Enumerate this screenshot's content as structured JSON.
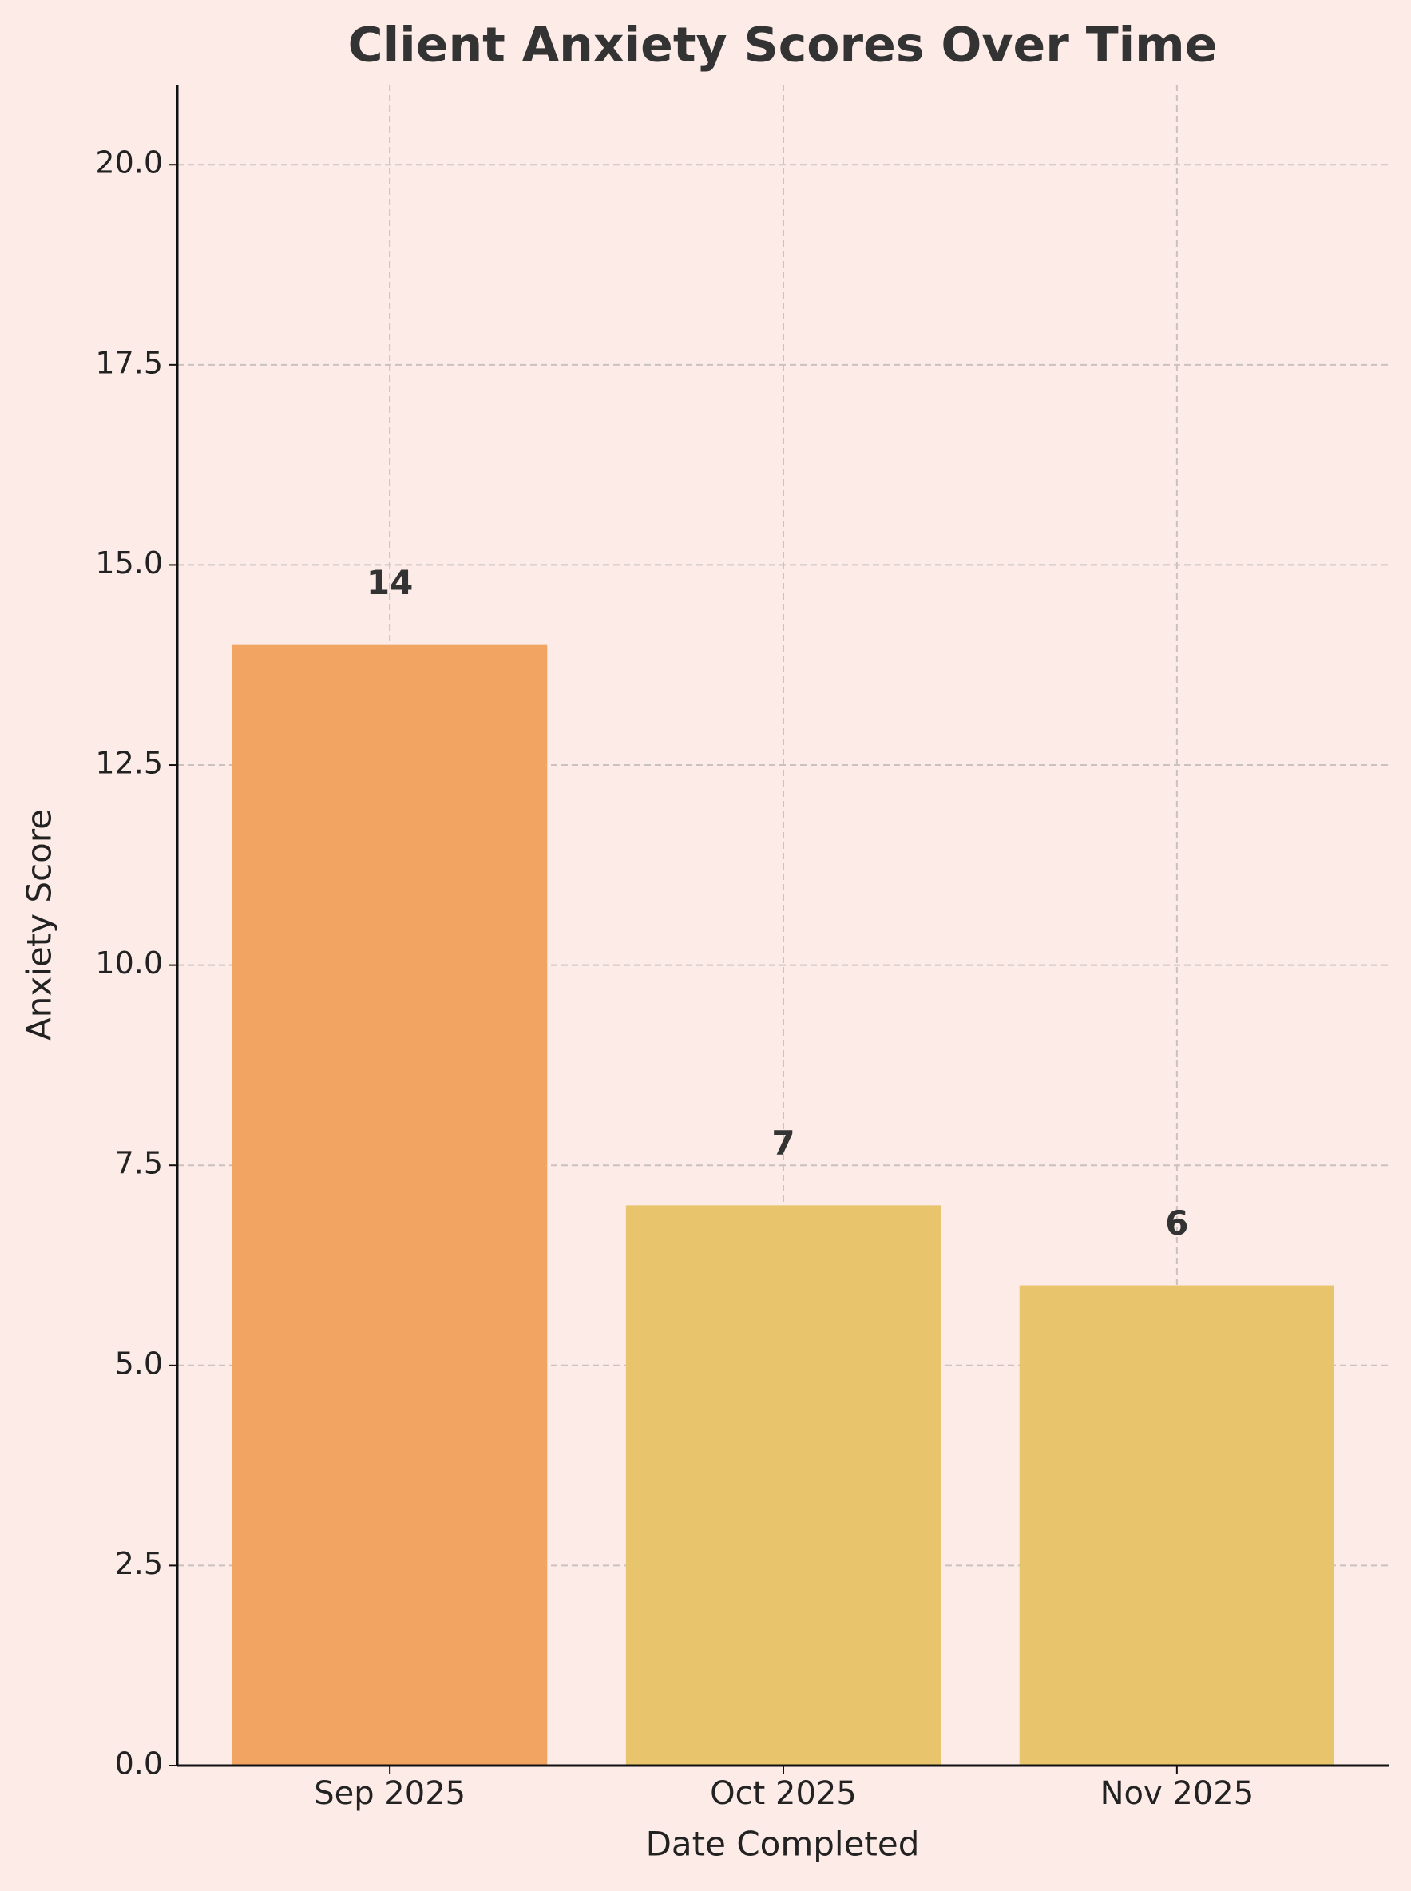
{
  "chart_data": {
    "type": "bar",
    "title": "Client Anxiety Scores Over Time",
    "x_label": "Date Completed",
    "y_label": "Anxiety Score",
    "categories": [
      "Sep 2025",
      "Oct 2025",
      "Nov 2025"
    ],
    "values": [
      14,
      7,
      6
    ],
    "colors": [
      "#f2a463",
      "#e8c56d",
      "#e8c56d"
    ],
    "ylim": [
      0,
      21
    ],
    "yticks": [
      {
        "value": 0,
        "label": "0.0"
      },
      2.5,
      {
        "value": 5,
        "label": "5.0"
      },
      7.5,
      {
        "value": 10,
        "label": "10.0"
      },
      12.5,
      {
        "value": 15,
        "label": "15.0"
      },
      17.5,
      {
        "value": 20,
        "label": "20.0"
      }
    ],
    "grid": true
  }
}
